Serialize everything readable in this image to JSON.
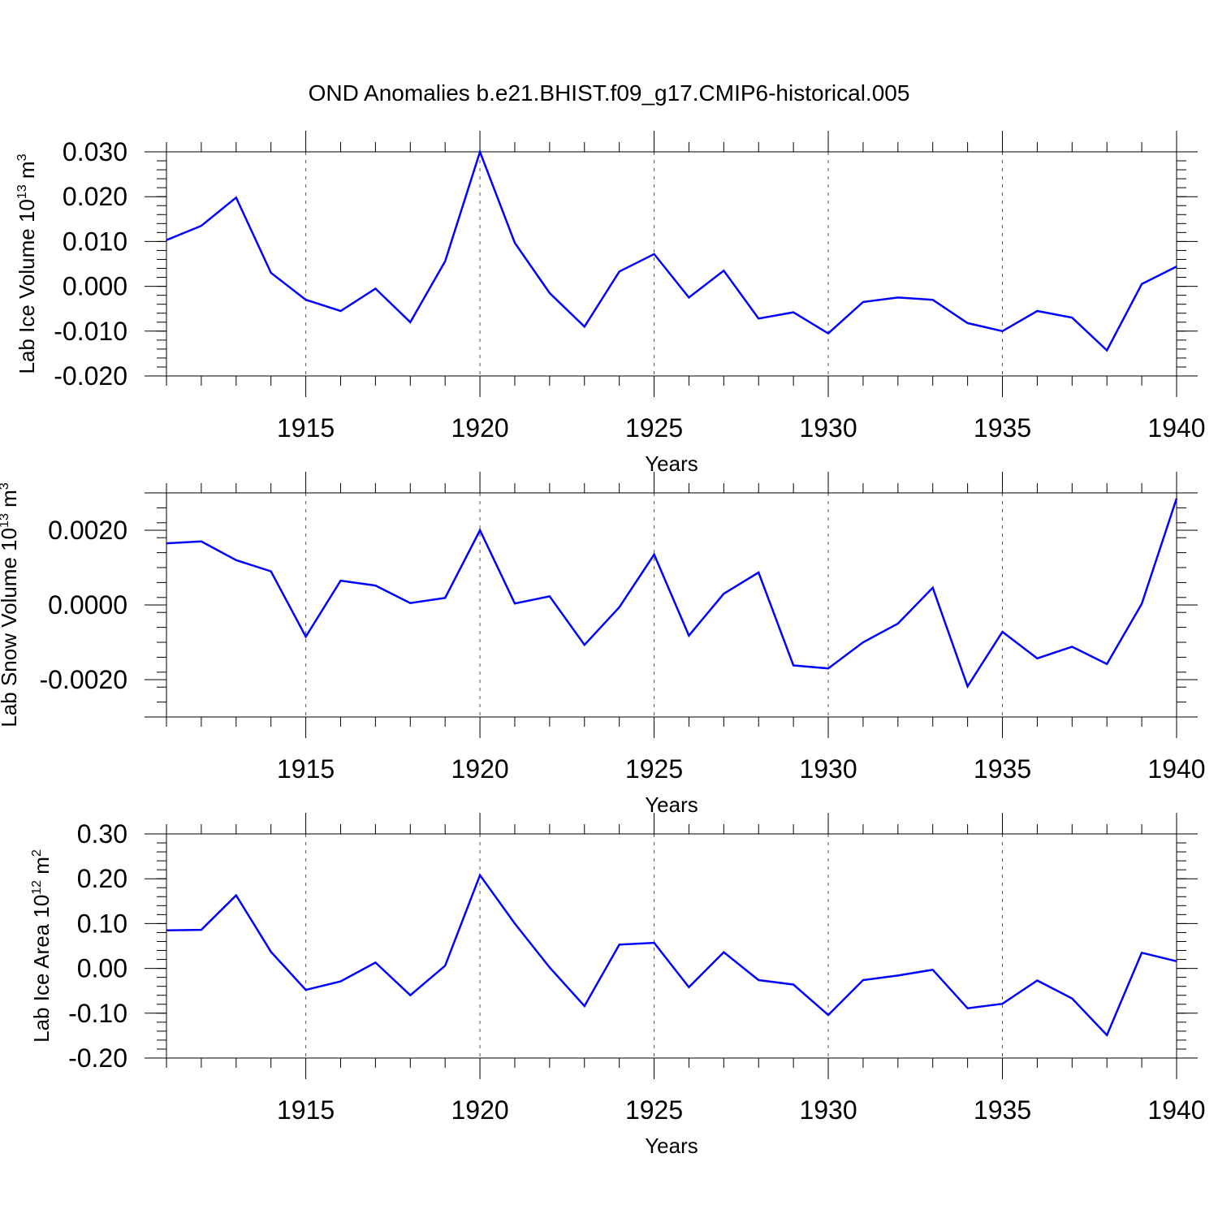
{
  "title": "OND Anomalies b.e21.BHIST.f09_g17.CMIP6-historical.005",
  "chart_data": [
    {
      "type": "line",
      "ylabel": {
        "pre": "Lab Ice Volume 10",
        "sup1": "13",
        "mid": " m",
        "sup2": "3"
      },
      "xlabel": "Years",
      "xlim": [
        1911,
        1940
      ],
      "ylim": [
        -0.02,
        0.03
      ],
      "x_ticks": [
        1915,
        1920,
        1925,
        1930,
        1935,
        1940
      ],
      "y_ticks": [
        -0.02,
        -0.01,
        0.0,
        0.01,
        0.02,
        0.03
      ],
      "y_tick_labels": [
        "-0.020",
        "-0.010",
        "0.000",
        "0.010",
        "0.020",
        "0.030"
      ],
      "color": "#0000ff",
      "x": [
        1911,
        1912,
        1913,
        1914,
        1915,
        1916,
        1917,
        1918,
        1919,
        1920,
        1921,
        1922,
        1923,
        1924,
        1925,
        1926,
        1927,
        1928,
        1929,
        1930,
        1931,
        1932,
        1933,
        1934,
        1935,
        1936,
        1937,
        1938,
        1939,
        1940
      ],
      "values": [
        0.0103,
        0.0135,
        0.0198,
        0.003,
        -0.003,
        -0.0055,
        -0.0005,
        -0.008,
        0.0056,
        0.03,
        0.0097,
        -0.0015,
        -0.009,
        0.0033,
        0.0072,
        -0.0025,
        0.0035,
        -0.0072,
        -0.0058,
        -0.0105,
        -0.0035,
        -0.0025,
        -0.003,
        -0.0082,
        -0.01,
        -0.0055,
        -0.007,
        -0.0143,
        0.0005,
        0.0044
      ]
    },
    {
      "type": "line",
      "ylabel": {
        "pre": "Lab Snow Volume 10",
        "sup1": "13",
        "mid": " m",
        "sup2": "3"
      },
      "xlabel": "Years",
      "xlim": [
        1911,
        1940
      ],
      "ylim": [
        -0.003,
        0.003
      ],
      "x_ticks": [
        1915,
        1920,
        1925,
        1930,
        1935,
        1940
      ],
      "y_ticks": [
        -0.002,
        0.0,
        0.002
      ],
      "y_tick_labels": [
        "-0.0020",
        "0.0000",
        "0.0020"
      ],
      "color": "#0000ff",
      "x": [
        1911,
        1912,
        1913,
        1914,
        1915,
        1916,
        1917,
        1918,
        1919,
        1920,
        1921,
        1922,
        1923,
        1924,
        1925,
        1926,
        1927,
        1928,
        1929,
        1930,
        1931,
        1932,
        1933,
        1934,
        1935,
        1936,
        1937,
        1938,
        1939,
        1940
      ],
      "values": [
        0.00165,
        0.0017,
        0.0012,
        0.0009,
        -0.00085,
        0.00065,
        0.00052,
        5e-05,
        0.00019,
        0.002,
        4e-05,
        0.00023,
        -0.00107,
        -6e-05,
        0.00135,
        -0.00082,
        0.0003,
        0.00087,
        -0.00162,
        -0.0017,
        -0.001,
        -0.0005,
        0.00046,
        -0.00218,
        -0.00072,
        -0.00143,
        -0.00112,
        -0.00158,
        3e-05,
        0.00285
      ]
    },
    {
      "type": "line",
      "ylabel": {
        "pre": "Lab Ice Area 10",
        "sup1": "12",
        "mid": " m",
        "sup2": "2"
      },
      "xlabel": "Years",
      "xlim": [
        1911,
        1940
      ],
      "ylim": [
        -0.2,
        0.3
      ],
      "x_ticks": [
        1915,
        1920,
        1925,
        1930,
        1935,
        1940
      ],
      "y_ticks": [
        -0.2,
        -0.1,
        0.0,
        0.1,
        0.2,
        0.3
      ],
      "y_tick_labels": [
        "-0.20",
        "-0.10",
        "0.00",
        "0.10",
        "0.20",
        "0.30"
      ],
      "color": "#0000ff",
      "x": [
        1911,
        1912,
        1913,
        1914,
        1915,
        1916,
        1917,
        1918,
        1919,
        1920,
        1921,
        1922,
        1923,
        1924,
        1925,
        1926,
        1927,
        1928,
        1929,
        1930,
        1931,
        1932,
        1933,
        1934,
        1935,
        1936,
        1937,
        1938,
        1939,
        1940
      ],
      "values": [
        0.085,
        0.086,
        0.163,
        0.037,
        -0.048,
        -0.029,
        0.013,
        -0.06,
        0.006,
        0.208,
        0.1,
        0.002,
        -0.084,
        0.053,
        0.057,
        -0.042,
        0.036,
        -0.026,
        -0.036,
        -0.104,
        -0.026,
        -0.016,
        -0.003,
        -0.089,
        -0.079,
        -0.027,
        -0.067,
        -0.149,
        0.035,
        0.016
      ]
    }
  ]
}
